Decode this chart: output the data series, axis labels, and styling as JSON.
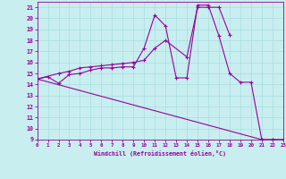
{
  "bg_color": "#c8eef0",
  "line_color": "#990099",
  "grid_color": "#a8dde0",
  "xlim": [
    0,
    23
  ],
  "ylim": [
    9,
    21.5
  ],
  "xticks": [
    0,
    1,
    2,
    3,
    4,
    5,
    6,
    7,
    8,
    9,
    10,
    11,
    12,
    13,
    14,
    15,
    16,
    17,
    18,
    19,
    20,
    21,
    22,
    23
  ],
  "yticks": [
    9,
    10,
    11,
    12,
    13,
    14,
    15,
    16,
    17,
    18,
    19,
    20,
    21
  ],
  "xlabel": "Windchill (Refroidissement éolien,°C)",
  "line1_x": [
    0,
    1,
    2,
    3,
    4,
    5,
    6,
    7,
    8,
    9,
    10,
    11,
    12,
    13,
    14,
    15,
    16,
    17,
    18,
    19,
    20,
    21,
    22,
    23
  ],
  "line1_y": [
    14.5,
    14.7,
    14.1,
    14.9,
    15.0,
    15.3,
    15.5,
    15.5,
    15.6,
    15.6,
    17.3,
    20.3,
    19.3,
    14.6,
    14.6,
    21.2,
    21.2,
    18.4,
    15.0,
    14.2,
    14.2,
    9.0,
    9.0,
    9.0
  ],
  "line2_x": [
    0,
    2,
    3,
    4,
    5,
    6,
    7,
    8,
    9,
    10,
    11,
    12,
    14,
    15,
    16,
    17,
    18
  ],
  "line2_y": [
    14.5,
    15.0,
    15.2,
    15.5,
    15.6,
    15.7,
    15.8,
    15.9,
    16.0,
    16.2,
    17.3,
    18.0,
    16.5,
    21.0,
    21.0,
    21.0,
    18.5
  ],
  "line3_x": [
    0,
    21,
    22,
    23
  ],
  "line3_y": [
    14.5,
    9.0,
    9.0,
    9.0
  ]
}
